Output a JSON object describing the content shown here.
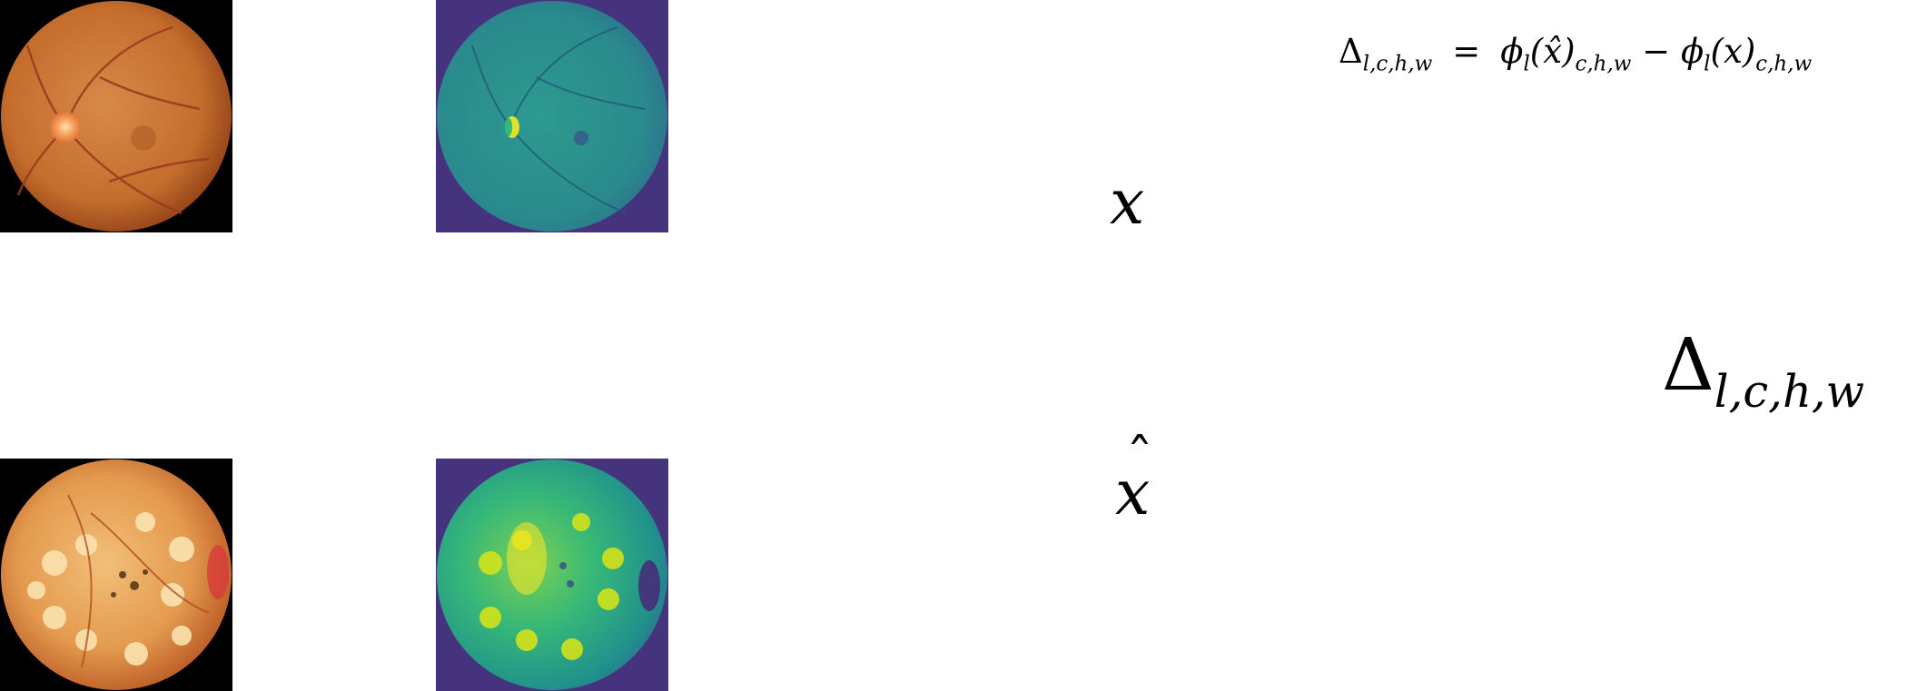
{
  "images": {
    "x_rgb": {
      "name": "original fundus photograph"
    },
    "x_feature": {
      "name": "original feature map"
    },
    "xhat_rgb": {
      "name": "reconstructed fundus photograph"
    },
    "xhat_feature": {
      "name": "reconstructed feature map"
    }
  },
  "equation": {
    "lhs_symbol": "Δ",
    "lhs_subscript": "l,c,h,w",
    "equals": "=",
    "phi": "ϕ",
    "phi_sub": "l",
    "x_hat_arg": "(x̂)",
    "x_arg": "(x)",
    "rhs_subscript": "c,h,w",
    "minus": "−"
  },
  "labels": {
    "x": "x",
    "x_hat_base": "x",
    "x_hat_accent": "ˆ",
    "delta_symbol": "Δ",
    "delta_subscript": "l,c,h,w"
  },
  "colors": {
    "fundus_orange": "#d27a32",
    "fundus_dark": "#9b4a1c",
    "viridis_purple": "#46337e",
    "viridis_teal": "#2a8c8c",
    "viridis_yellow": "#dfe12a"
  }
}
